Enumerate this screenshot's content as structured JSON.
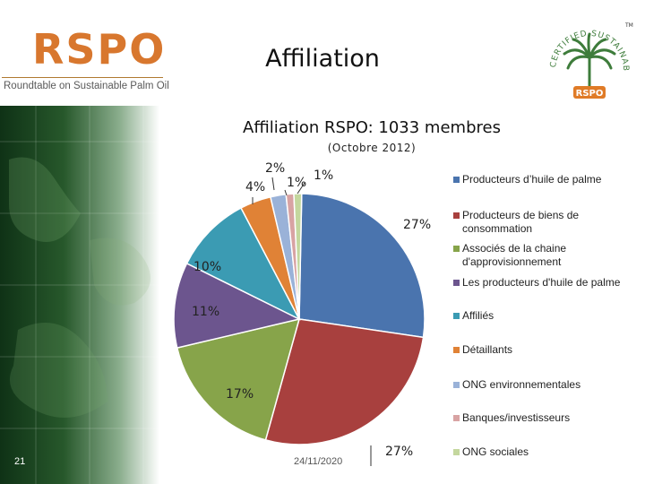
{
  "header": {
    "title": "Affiliation",
    "logo_word": "RSPO",
    "logo_tagline": "Roundtable on Sustainable Palm Oil",
    "cert_logo_text": "CERTIFIED SUSTAINABLE PALM OIL",
    "cert_logo_word": "RSPO",
    "cert_tm": "TM"
  },
  "footer": {
    "page_number": "21",
    "date": "24/11/2020"
  },
  "colors": {
    "logo_orange": "#d8772e",
    "logo_red": "#c23b22",
    "palm_green": "#3e7c3b",
    "cert_orange": "#e07b27"
  },
  "chart_data": {
    "type": "pie",
    "title": "Affiliation RSPO: 1033 membres",
    "subtitle": "(Octobre 2012)",
    "legend_position": "right",
    "slices": [
      {
        "name": "Producteurs d'huile de palme",
        "value": 27,
        "label": "27%",
        "color": "#4a74ae"
      },
      {
        "name": "Producteurs de biens de consommation",
        "value": 27,
        "label": "27%",
        "color": "#a8403e"
      },
      {
        "name": "Associés de la chaine d'approvisionnement",
        "value": 17,
        "label": "17%",
        "color": "#87a44a"
      },
      {
        "name": "Les producteurs d'huile de palme Affiliés",
        "value": 11,
        "label": "11%",
        "color": "#6c558e"
      },
      {
        "name": "Détaillants",
        "value": 10,
        "label": "10%",
        "color": "#3b9bb3"
      },
      {
        "name": "ONG environnementales",
        "value": 4,
        "label": "4%",
        "color": "#e08236"
      },
      {
        "name": "Banques/investisseurs",
        "value": 2,
        "label": "2%",
        "color": "#9ab2d8"
      },
      {
        "name": "ONG sociales",
        "value": 1,
        "label": "1%",
        "color": "#d8a3a3"
      },
      {
        "name": "",
        "value": 1,
        "label": "1%",
        "color": "#c4d79e"
      }
    ],
    "legend": [
      {
        "text": "Producteurs d’huile de palme",
        "color": "#4a74ae"
      },
      {
        "text": "Producteurs de biens de consommation",
        "color": "#a8403e"
      },
      {
        "text": "Associés de la chaine d'approvisionnement",
        "color": "#87a44a"
      },
      {
        "text": "Les producteurs d'huile de palme",
        "color": "#6c558e"
      },
      {
        "text": "Affiliés",
        "color": "#3b9bb3"
      },
      {
        "text": "Détaillants",
        "color": "#e08236"
      },
      {
        "text": "ONG environnementales",
        "color": "#9ab2d8"
      },
      {
        "text": "Banques/investisseurs",
        "color": "#d8a3a3"
      },
      {
        "text": "ONG sociales",
        "color": "#c4d79e"
      }
    ]
  }
}
